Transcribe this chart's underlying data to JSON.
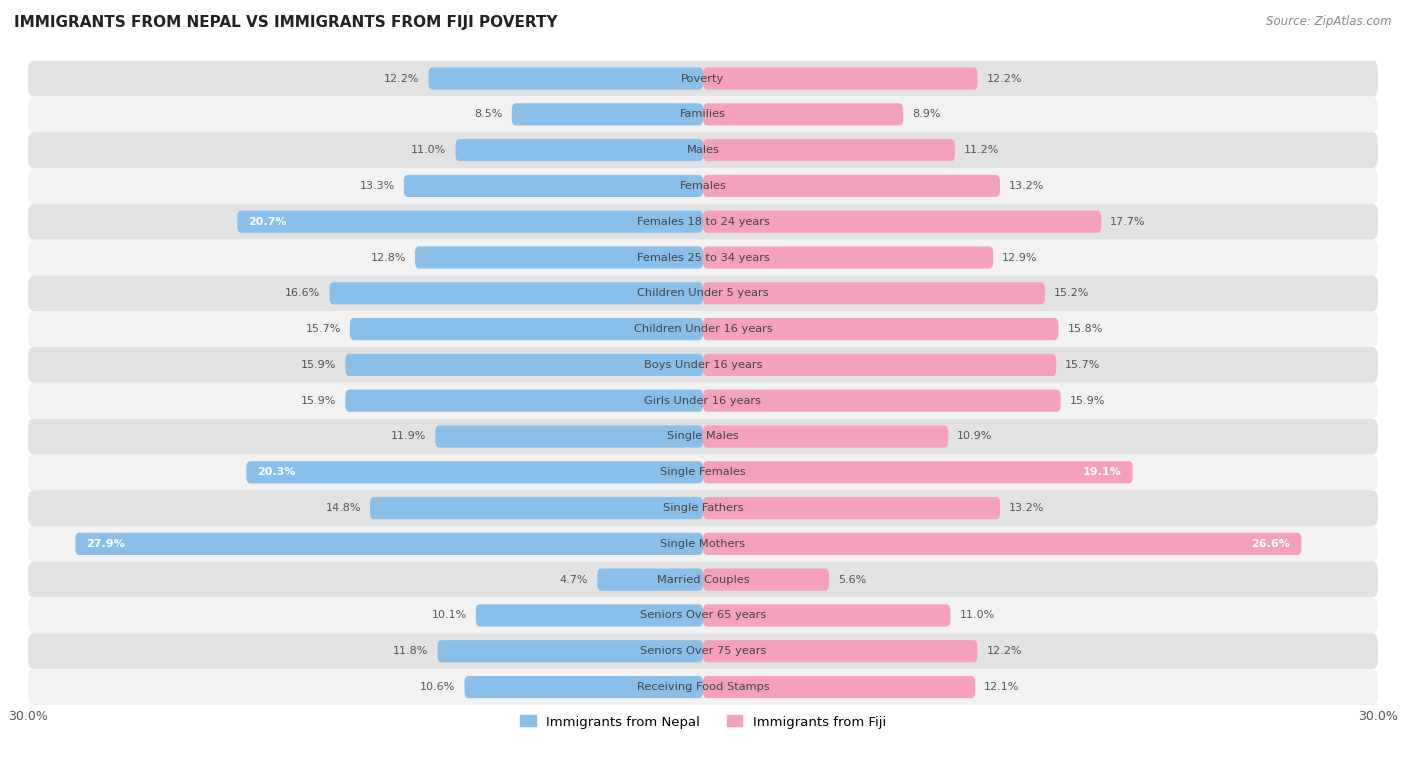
{
  "title": "IMMIGRANTS FROM NEPAL VS IMMIGRANTS FROM FIJI POVERTY",
  "source": "Source: ZipAtlas.com",
  "categories": [
    "Poverty",
    "Families",
    "Males",
    "Females",
    "Females 18 to 24 years",
    "Females 25 to 34 years",
    "Children Under 5 years",
    "Children Under 16 years",
    "Boys Under 16 years",
    "Girls Under 16 years",
    "Single Males",
    "Single Females",
    "Single Fathers",
    "Single Mothers",
    "Married Couples",
    "Seniors Over 65 years",
    "Seniors Over 75 years",
    "Receiving Food Stamps"
  ],
  "nepal_values": [
    12.2,
    8.5,
    11.0,
    13.3,
    20.7,
    12.8,
    16.6,
    15.7,
    15.9,
    15.9,
    11.9,
    20.3,
    14.8,
    27.9,
    4.7,
    10.1,
    11.8,
    10.6
  ],
  "fiji_values": [
    12.2,
    8.9,
    11.2,
    13.2,
    17.7,
    12.9,
    15.2,
    15.8,
    15.7,
    15.9,
    10.9,
    19.1,
    13.2,
    26.6,
    5.6,
    11.0,
    12.2,
    12.1
  ],
  "nepal_color": "#89BFE8",
  "fiji_color": "#F4A0BE",
  "nepal_label": "Immigrants from Nepal",
  "fiji_label": "Immigrants from Fiji",
  "x_max": 30.0,
  "background_color": "#ffffff",
  "row_color_light": "#f2f2f2",
  "row_color_dark": "#e2e2e2",
  "label_threshold": 18.0
}
